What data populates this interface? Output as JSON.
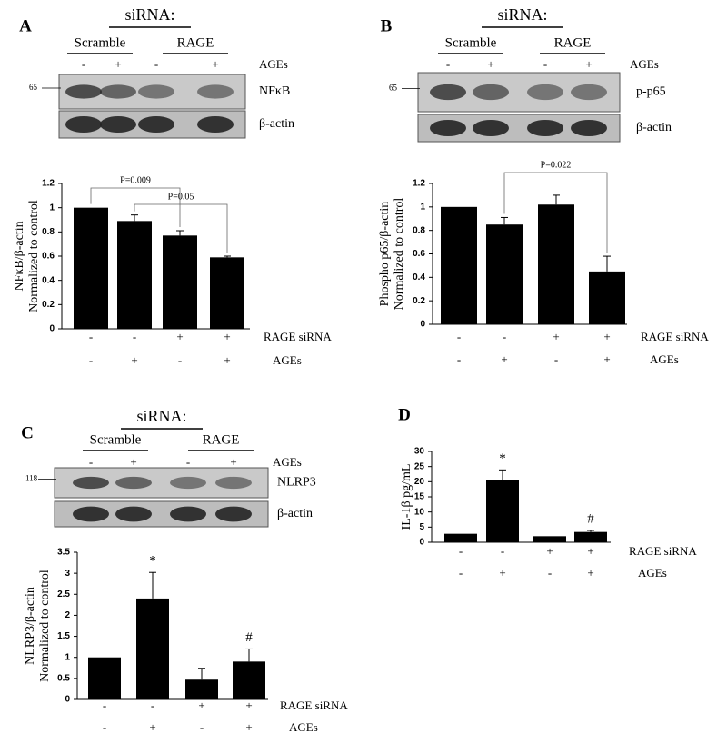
{
  "chart_data": [
    {
      "type": "bar",
      "panel": "A",
      "group_title": "siRNA:",
      "groups": [
        "Scramble",
        "RAGE"
      ],
      "lane_signs": [
        "-",
        "+",
        "-",
        "+"
      ],
      "lane_factor": "AGEs",
      "blots": [
        {
          "label": "NFκB",
          "marker": "65"
        },
        {
          "label": "β-actin"
        }
      ],
      "ylabel": [
        "NFκB/β-actin",
        "Normalized to control"
      ],
      "values": [
        1,
        0.89,
        0.77,
        0.59
      ],
      "errors": [
        null,
        0.05,
        0.04,
        0.01
      ],
      "color": "#000000",
      "ylim": [
        0,
        1.2
      ],
      "yticks": [
        0,
        0.2,
        0.4,
        0.6,
        0.8,
        1,
        1.2
      ],
      "annotations": [
        {
          "text": "P=0.009",
          "between": [
            0,
            2
          ]
        },
        {
          "text": "P=0.05",
          "between": [
            1,
            3
          ]
        }
      ],
      "treatments": [
        {
          "name": "RAGE siRNA",
          "signs": [
            "-",
            "-",
            "+",
            "+"
          ]
        },
        {
          "name": "AGEs",
          "signs": [
            "-",
            "+",
            "-",
            "+"
          ]
        }
      ]
    },
    {
      "type": "bar",
      "panel": "B",
      "group_title": "siRNA:",
      "groups": [
        "Scramble",
        "RAGE"
      ],
      "lane_signs": [
        "-",
        "+",
        "-",
        "+"
      ],
      "lane_factor": "AGEs",
      "blots": [
        {
          "label": "p-p65",
          "marker": "65"
        },
        {
          "label": "β-actin"
        }
      ],
      "ylabel": [
        "Phospho p65/β-actin",
        "Normalized to control"
      ],
      "values": [
        1,
        0.85,
        1.02,
        0.45
      ],
      "errors": [
        null,
        0.06,
        0.08,
        0.13
      ],
      "color": "#000000",
      "ylim": [
        0,
        1.2
      ],
      "yticks": [
        0,
        0.2,
        0.4,
        0.6,
        0.8,
        1,
        1.2
      ],
      "annotations": [
        {
          "text": "P=0.022",
          "between": [
            1,
            3
          ]
        }
      ],
      "treatments": [
        {
          "name": "RAGE siRNA",
          "signs": [
            "-",
            "-",
            "+",
            "+"
          ]
        },
        {
          "name": "AGEs",
          "signs": [
            "-",
            "+",
            "-",
            "+"
          ]
        }
      ]
    },
    {
      "type": "bar",
      "panel": "C",
      "group_title": "siRNA:",
      "groups": [
        "Scramble",
        "RAGE"
      ],
      "lane_signs": [
        "-",
        "+",
        "-",
        "+"
      ],
      "lane_factor": "AGEs",
      "blots": [
        {
          "label": "NLRP3",
          "marker": "118"
        },
        {
          "label": "β-actin"
        }
      ],
      "ylabel": [
        "NLRP3/β-actin",
        "Normalized to control"
      ],
      "values": [
        1,
        2.4,
        0.47,
        0.9
      ],
      "errors": [
        null,
        0.62,
        0.27,
        0.3
      ],
      "value_labels": [
        null,
        "*",
        null,
        "#"
      ],
      "color": "#000000",
      "ylim": [
        0,
        3.5
      ],
      "yticks": [
        0,
        0.5,
        1,
        1.5,
        2,
        2.5,
        3,
        3.5
      ],
      "treatments": [
        {
          "name": "RAGE siRNA",
          "signs": [
            "-",
            "-",
            "+",
            "+"
          ]
        },
        {
          "name": "AGEs",
          "signs": [
            "-",
            "+",
            "-",
            "+"
          ]
        }
      ]
    },
    {
      "type": "bar",
      "panel": "D",
      "ylabel": [
        "IL-1β pg/mL"
      ],
      "values": [
        2.8,
        20.7,
        2,
        3.4
      ],
      "errors": [
        null,
        3.2,
        null,
        0.5
      ],
      "value_labels": [
        null,
        "*",
        null,
        "#"
      ],
      "color": "#000000",
      "ylim": [
        0,
        30
      ],
      "yticks": [
        0,
        5,
        10,
        15,
        20,
        25,
        30
      ],
      "treatments": [
        {
          "name": "RAGE siRNA",
          "signs": [
            "-",
            "-",
            "+",
            "+"
          ]
        },
        {
          "name": "AGEs",
          "signs": [
            "-",
            "+",
            "-",
            "+"
          ]
        }
      ]
    }
  ]
}
